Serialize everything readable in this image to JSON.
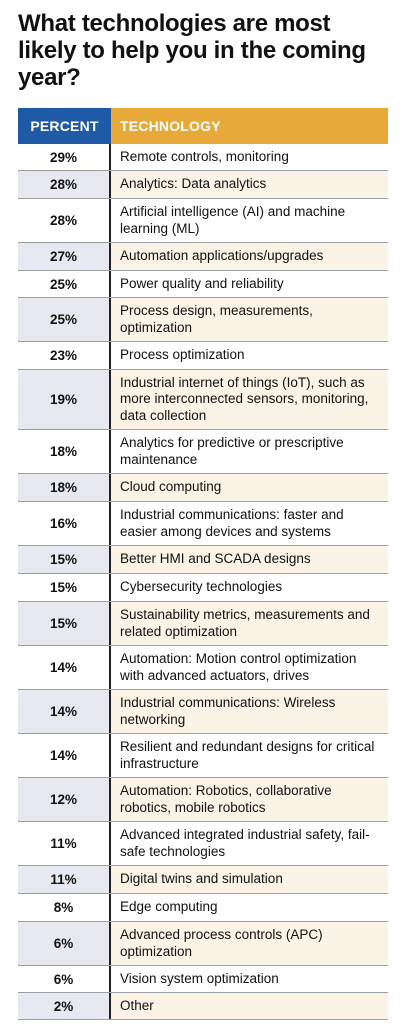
{
  "title": "What technologies are most likely to help you in the coming year?",
  "chart_data": {
    "type": "table",
    "columns": [
      "PERCENT",
      "TECHNOLOGY"
    ],
    "rows": [
      {
        "percent": "29%",
        "technology": "Remote controls, monitoring"
      },
      {
        "percent": "28%",
        "technology": "Analytics: Data analytics"
      },
      {
        "percent": "28%",
        "technology": "Artificial intelligence (AI) and machine learning (ML)"
      },
      {
        "percent": "27%",
        "technology": "Automation applications/upgrades"
      },
      {
        "percent": "25%",
        "technology": "Power quality and reliability"
      },
      {
        "percent": "25%",
        "technology": "Process design, measurements, optimization"
      },
      {
        "percent": "23%",
        "technology": "Process optimization"
      },
      {
        "percent": "19%",
        "technology": "Industrial internet of things (IoT), such as more interconnected sensors, monitoring, data collection"
      },
      {
        "percent": "18%",
        "technology": "Analytics for predictive or prescriptive maintenance"
      },
      {
        "percent": "18%",
        "technology": "Cloud computing"
      },
      {
        "percent": "16%",
        "technology": "Industrial communications: faster and easier among devices and systems"
      },
      {
        "percent": "15%",
        "technology": "Better HMI and SCADA designs"
      },
      {
        "percent": "15%",
        "technology": "Cybersecurity technologies"
      },
      {
        "percent": "15%",
        "technology": "Sustainability metrics, measurements and related optimization"
      },
      {
        "percent": "14%",
        "technology": "Automation: Motion control optimization with advanced actuators, drives"
      },
      {
        "percent": "14%",
        "technology": "Industrial communications: Wireless networking"
      },
      {
        "percent": "14%",
        "technology": "Resilient and redundant designs for critical infrastructure"
      },
      {
        "percent": "12%",
        "technology": "Automation: Robotics, collaborative robotics, mobile robotics"
      },
      {
        "percent": "11%",
        "technology": "Advanced integrated industrial safety, fail-safe technologies"
      },
      {
        "percent": "11%",
        "technology": "Digital twins and simulation"
      },
      {
        "percent": "8%",
        "technology": "Edge computing"
      },
      {
        "percent": "6%",
        "technology": "Advanced process controls (APC) optimization"
      },
      {
        "percent": "6%",
        "technology": "Vision system optimization"
      },
      {
        "percent": "2%",
        "technology": "Other"
      }
    ]
  },
  "colors": {
    "percent_header": "#1f5aa6",
    "technology_header": "#e6a93a",
    "percent_alt_row": "#e8e8f2",
    "technology_alt_row": "#fbf3e6"
  }
}
